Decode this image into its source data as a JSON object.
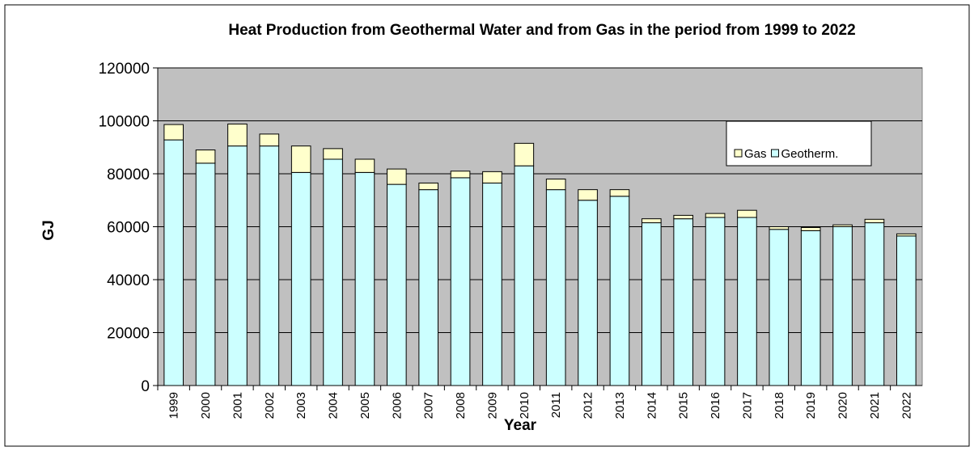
{
  "chart_data": {
    "type": "stacked_bar",
    "title": "Heat Production from Geothermal Water and from Gas in the period from 1999 to 2022",
    "x_label": "Year",
    "y_label": "GJ",
    "categories": [
      "1999",
      "2000",
      "2001",
      "2002",
      "2003",
      "2004",
      "2005",
      "2006",
      "2007",
      "2008",
      "2009",
      "2010",
      "2011",
      "2012",
      "2013",
      "2014",
      "2015",
      "2016",
      "2017",
      "2018",
      "2019",
      "2020",
      "2021",
      "2022"
    ],
    "series": [
      {
        "name": "Geotherm.",
        "color": "#ccffff",
        "values": [
          92800,
          84000,
          90500,
          90500,
          80500,
          85500,
          80500,
          76000,
          74000,
          78500,
          76500,
          83000,
          74000,
          70000,
          71500,
          61500,
          63000,
          63500,
          63500,
          59000,
          58500,
          60000,
          61500,
          56500
        ]
      },
      {
        "name": "Gas",
        "color": "#ffffcc",
        "values": [
          5800,
          5000,
          8300,
          4500,
          10000,
          4000,
          5000,
          5800,
          2500,
          2500,
          4300,
          8500,
          4000,
          4000,
          2500,
          1500,
          1300,
          1500,
          2700,
          1000,
          1200,
          700,
          1300,
          800
        ]
      }
    ],
    "ylim": [
      0,
      120000
    ],
    "yticks": [
      0,
      20000,
      40000,
      60000,
      80000,
      100000,
      120000
    ],
    "grid": true,
    "plot_background": "#c0c0c0",
    "legend_position": "upper right"
  }
}
